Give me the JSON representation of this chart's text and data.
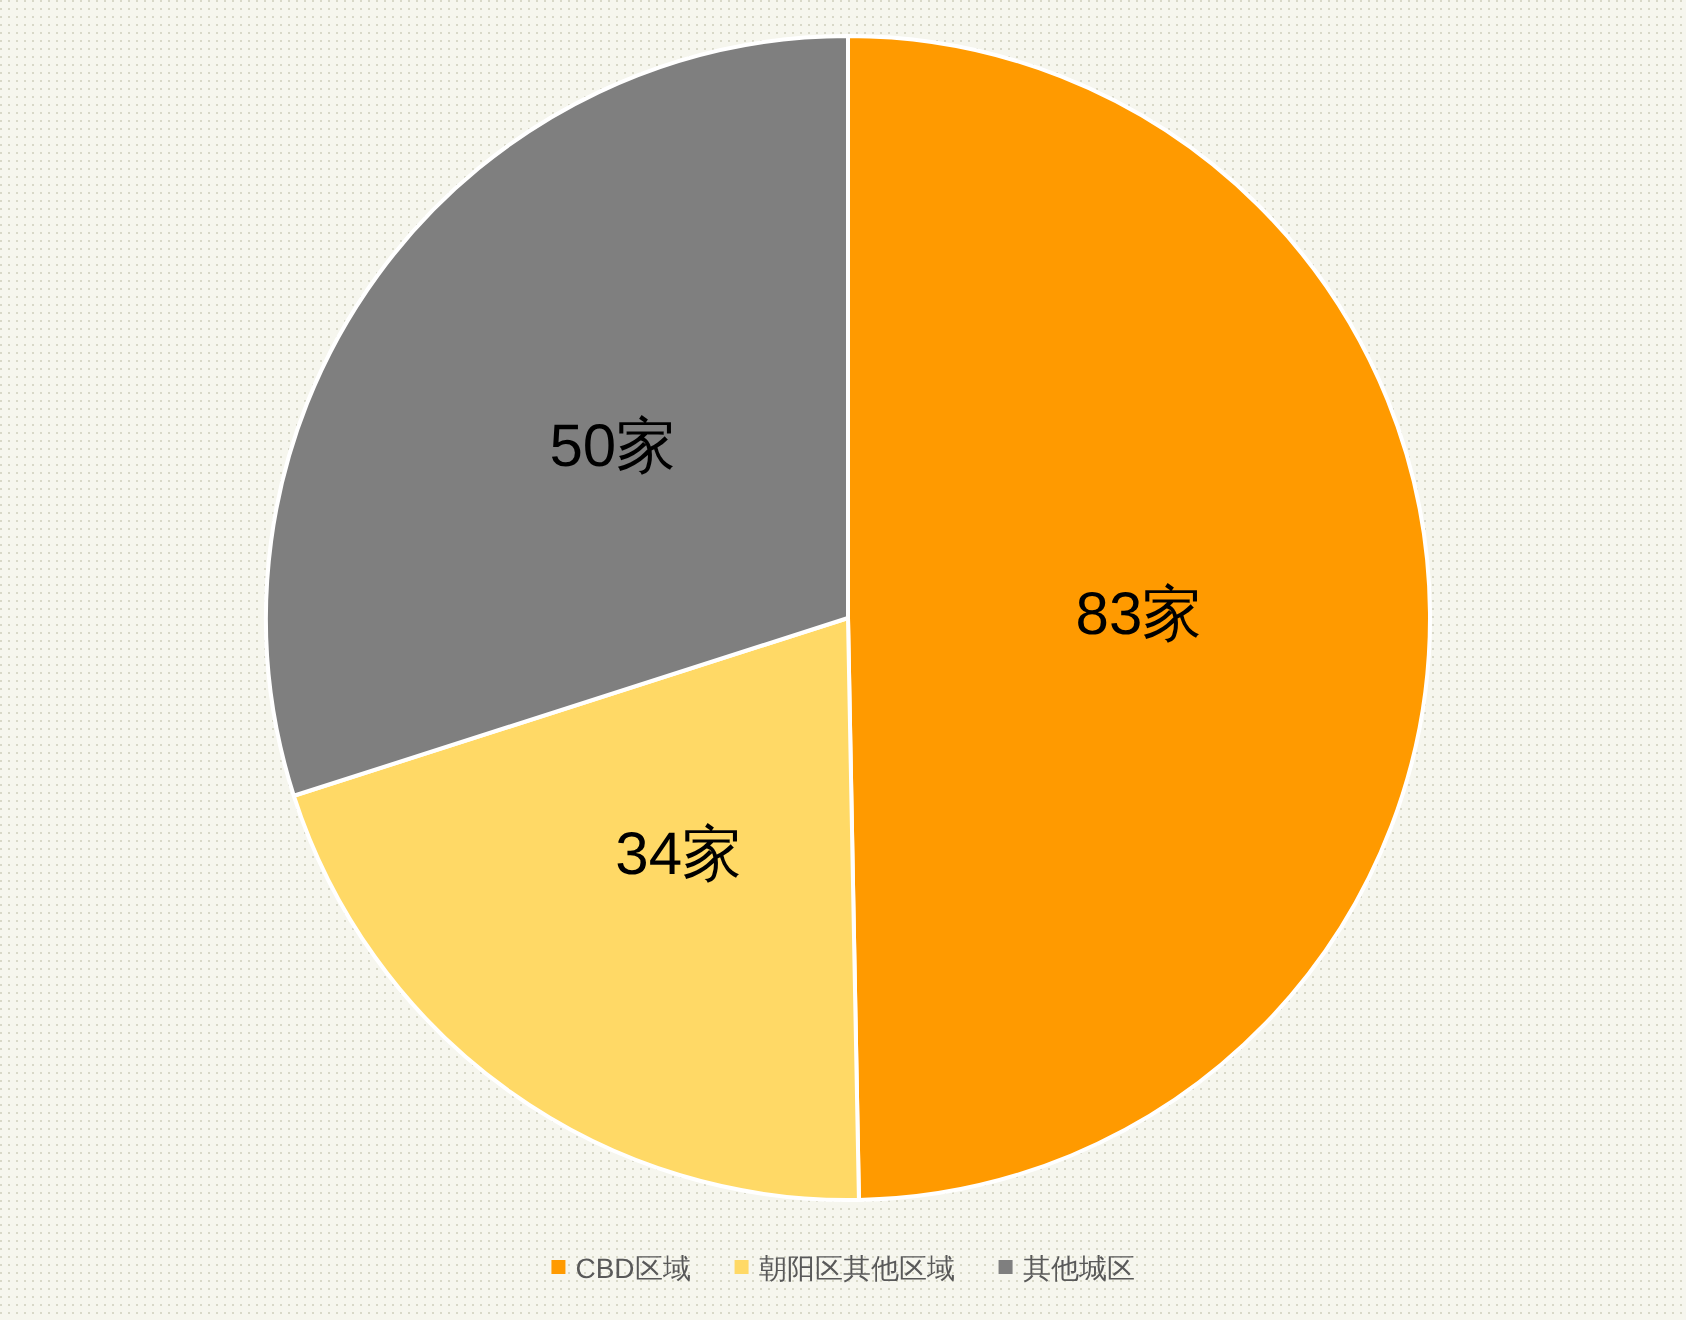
{
  "chart_data": {
    "type": "pie",
    "categories": [
      "CBD区域",
      "朝阳区其他区域",
      "其他城区"
    ],
    "values": [
      83,
      34,
      50
    ],
    "value_labels": [
      "83家",
      "34家",
      "50家"
    ],
    "colors": [
      "#ff9a00",
      "#ffd966",
      "#7f7f7f"
    ],
    "legend": "bottom"
  }
}
